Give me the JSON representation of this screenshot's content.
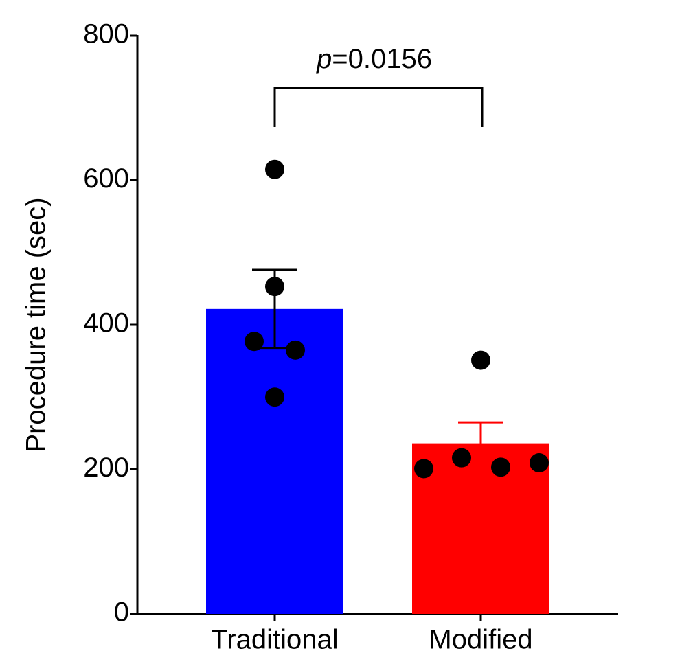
{
  "chart_data": {
    "type": "bar",
    "categories": [
      "Traditional",
      "Modified"
    ],
    "values": [
      422,
      236
    ],
    "errors": [
      54,
      29
    ],
    "colors": [
      "#0000ff",
      "#ff0000"
    ],
    "error_colors": [
      "#000000",
      "#ff0000"
    ],
    "points": [
      [
        615,
        453,
        377,
        365,
        300
      ],
      [
        351,
        201,
        216,
        203,
        209
      ]
    ],
    "point_color": "#000000",
    "ylabel": "Procedure time (sec)",
    "annotation": "p=0.0156",
    "ylim": [
      0,
      800
    ],
    "yticks": [
      0,
      200,
      400,
      600,
      800
    ]
  }
}
